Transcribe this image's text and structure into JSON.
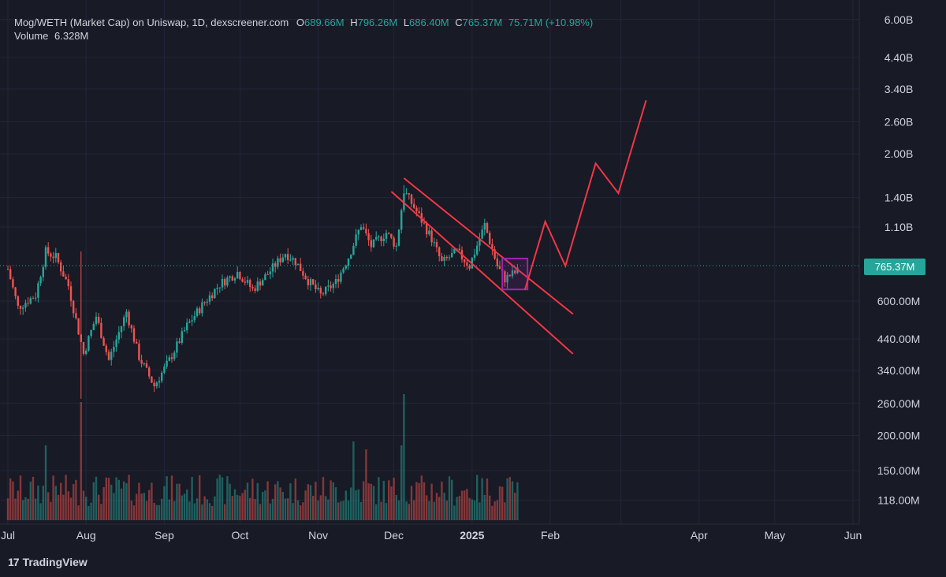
{
  "header": {
    "title": "Mog/WETH (Market Cap) on Uniswap, 1D, dexscreener.com",
    "open_label": "O",
    "open": "689.66M",
    "high_label": "H",
    "high": "796.26M",
    "low_label": "L",
    "low": "686.40M",
    "close_label": "C",
    "close": "765.37M",
    "change": "75.71M (+10.98%)",
    "volume_label": "Volume",
    "volume": "6.328M"
  },
  "price_tag": "765.37M",
  "brand": {
    "mark": "17",
    "name": "TradingView"
  },
  "colors": {
    "up": "#26a69a",
    "down": "#ef5350",
    "annotation": "#f23645",
    "box": "#9c27b0",
    "background": "#181a25"
  },
  "chart_data": {
    "type": "candlestick",
    "scale": "log",
    "yticks": [
      "6.00B",
      "4.40B",
      "3.40B",
      "2.60B",
      "2.00B",
      "1.40B",
      "1.10B",
      "600.00M",
      "440.00M",
      "340.00M",
      "260.00M",
      "200.00M",
      "150.00M",
      "118.00M"
    ],
    "xticks": [
      "Jul",
      "Aug",
      "Sep",
      "Oct",
      "Nov",
      "Dec",
      "2025",
      "Feb",
      "Apr",
      "May",
      "Jun"
    ],
    "ylim": [
      "100M",
      "6.6B"
    ],
    "series": [
      {
        "type": "candles",
        "unit": "market cap",
        "x_range": [
          "2024-07-01",
          "2025-01-19"
        ],
        "lows_highs": [
          {
            "x": "2024-07-30",
            "low": "270M",
            "high": "900M"
          },
          {
            "x": "2024-08-28",
            "low": "270M",
            "high": "370M"
          },
          {
            "x": "2024-12-05",
            "low": "1.2B",
            "high": "1.55B"
          },
          {
            "x": "2025-01-10",
            "low": "800M",
            "high": "1.2B"
          },
          {
            "x": "2025-01-19",
            "low": "686.40M",
            "high": "796.26M"
          }
        ]
      }
    ],
    "annotations": {
      "channel": [
        {
          "from": [
            "2024-12-05",
            "1.64B"
          ],
          "to": [
            "2025-02-10",
            "540M"
          ]
        },
        {
          "from": [
            "2024-11-30",
            "1.47B"
          ],
          "to": [
            "2025-02-10",
            "390M"
          ]
        }
      ],
      "box": {
        "x": [
          "2025-01-13",
          "2025-01-23"
        ],
        "y": [
          "660M",
          "850M"
        ]
      },
      "projection": [
        [
          "2025-01-22",
          "660M"
        ],
        [
          "2025-01-30",
          "1.15B"
        ],
        [
          "2025-02-07",
          "800M"
        ],
        [
          "2025-02-19",
          "1.85B"
        ],
        [
          "2025-02-28",
          "1.45B"
        ],
        [
          "2025-03-11",
          "3.1B"
        ]
      ]
    }
  }
}
